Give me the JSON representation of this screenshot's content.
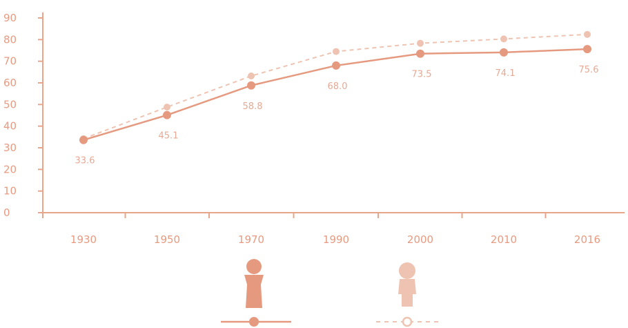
{
  "colors": {
    "axis": "#e9a58a",
    "tick_text": "#e89a80",
    "male": "#e59a80",
    "female": "#efc3b2",
    "female_label": "#f4d8cc",
    "male_label": "#e7a995"
  },
  "chart_data": {
    "type": "line",
    "title": "",
    "xlabel": "",
    "ylabel": "",
    "categories": [
      "1930",
      "1950",
      "1970",
      "1990",
      "2000",
      "2010",
      "2016"
    ],
    "ylim": [
      0,
      90
    ],
    "y_ticks": [
      0,
      10,
      20,
      30,
      40,
      50,
      60,
      70,
      80,
      90
    ],
    "grid": false,
    "legend": "bottom-center",
    "series": [
      {
        "key": "male",
        "style": "solid",
        "icon": "male-figure-icon",
        "values": [
          33.6,
          45.1,
          58.8,
          68.0,
          73.5,
          74.1,
          75.6
        ],
        "labels": [
          "33.6",
          "45.1",
          "58.8",
          "68.0",
          "73.5",
          "74.1",
          "75.6"
        ]
      },
      {
        "key": "female",
        "style": "dashed",
        "icon": "female-figure-icon",
        "values": [
          34.2,
          48.8,
          63.2,
          74.5,
          78.3,
          80.3,
          82.4
        ]
      }
    ]
  }
}
